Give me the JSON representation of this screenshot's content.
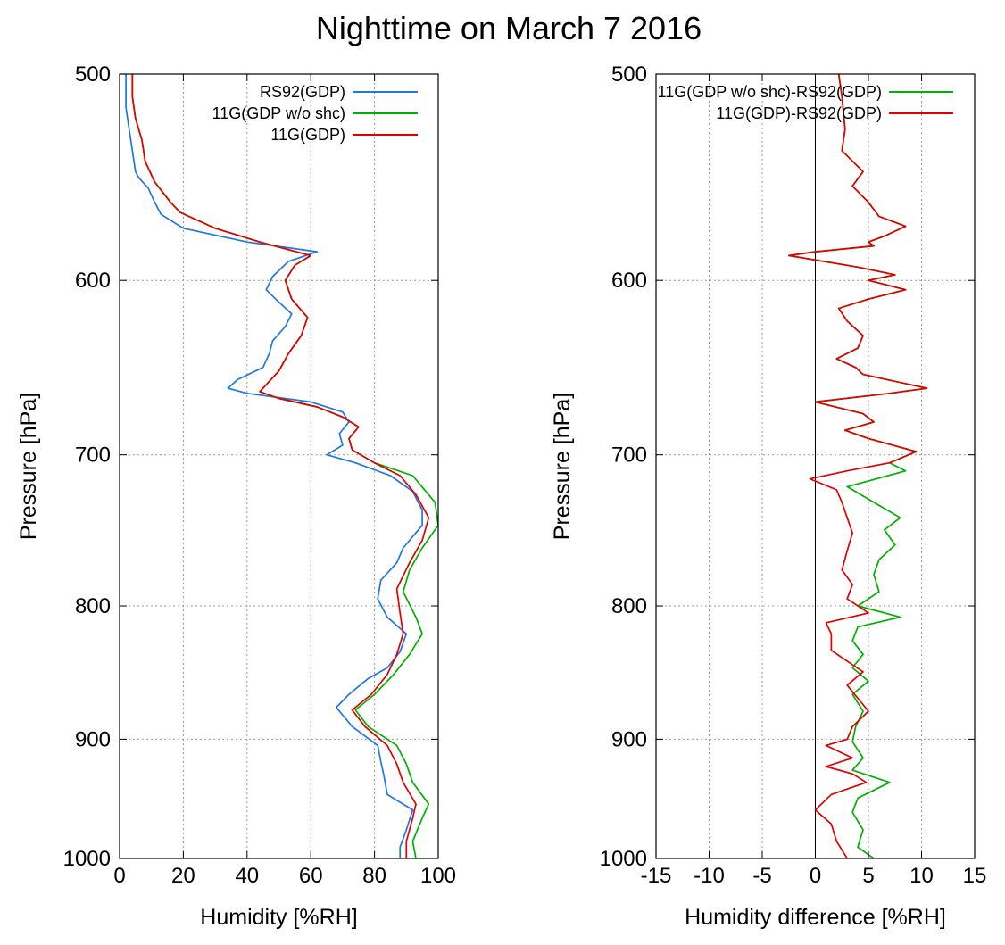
{
  "title": "Nighttime on March 7  2016",
  "chart_data": [
    {
      "type": "line",
      "orientation": "vertical-profile",
      "xlabel": "Humidity [%RH]",
      "ylabel": "Pressure [hPa]",
      "xlim": [
        0,
        100
      ],
      "ylim": [
        1000,
        500
      ],
      "yscale": "log",
      "xticks": [
        0,
        20,
        40,
        60,
        80,
        100
      ],
      "yticks": [
        500,
        600,
        700,
        800,
        900,
        1000
      ],
      "grid": true,
      "legend_position": "top-right",
      "series": [
        {
          "name": "RS92(GDP)",
          "color": "#1f77e0",
          "points": [
            [
              2,
              500
            ],
            [
              2,
              505
            ],
            [
              2,
              515
            ],
            [
              3,
              525
            ],
            [
              4,
              535
            ],
            [
              5,
              545
            ],
            [
              6,
              548
            ],
            [
              9,
              553
            ],
            [
              11,
              560
            ],
            [
              13,
              566
            ],
            [
              20,
              573
            ],
            [
              40,
              580
            ],
            [
              62,
              585
            ],
            [
              53,
              590
            ],
            [
              48,
              598
            ],
            [
              46,
              605
            ],
            [
              49,
              610
            ],
            [
              54,
              618
            ],
            [
              52,
              625
            ],
            [
              48,
              633
            ],
            [
              47,
              640
            ],
            [
              45,
              648
            ],
            [
              37,
              655
            ],
            [
              34,
              660
            ],
            [
              40,
              663
            ],
            [
              60,
              668
            ],
            [
              70,
              674
            ],
            [
              72,
              680
            ],
            [
              69,
              687
            ],
            [
              70,
              694
            ],
            [
              65,
              700
            ],
            [
              74,
              705
            ],
            [
              85,
              713
            ],
            [
              92,
              723
            ],
            [
              95,
              735
            ],
            [
              95,
              745
            ],
            [
              89,
              760
            ],
            [
              87,
              770
            ],
            [
              82,
              782
            ],
            [
              81,
              795
            ],
            [
              84,
              808
            ],
            [
              90,
              820
            ],
            [
              88,
              833
            ],
            [
              84,
              845
            ],
            [
              78,
              853
            ],
            [
              72,
              865
            ],
            [
              68,
              875
            ],
            [
              73,
              890
            ],
            [
              81,
              905
            ],
            [
              82,
              918
            ],
            [
              83,
              930
            ],
            [
              84,
              945
            ],
            [
              92,
              958
            ],
            [
              90,
              975
            ],
            [
              88,
              990
            ],
            [
              88,
              1000
            ]
          ]
        },
        {
          "name": "11G(GDP w/o shc)",
          "color": "#00b000",
          "points": [
            [
              4,
              500
            ],
            [
              4,
              510
            ],
            [
              5,
              520
            ],
            [
              7,
              530
            ],
            [
              8,
              540
            ],
            [
              11,
              550
            ],
            [
              16,
              560
            ],
            [
              19,
              565
            ],
            [
              30,
              573
            ],
            [
              44,
              580
            ],
            [
              60,
              587
            ],
            [
              55,
              592
            ],
            [
              52,
              600
            ],
            [
              54,
              610
            ],
            [
              59,
              620
            ],
            [
              57,
              630
            ],
            [
              53,
              640
            ],
            [
              50,
              650
            ],
            [
              46,
              658
            ],
            [
              44,
              662
            ],
            [
              50,
              666
            ],
            [
              62,
              671
            ],
            [
              70,
              677
            ],
            [
              75,
              683
            ],
            [
              72,
              690
            ],
            [
              73,
              697
            ],
            [
              80,
              705
            ],
            [
              92,
              713
            ],
            [
              99,
              730
            ],
            [
              100,
              745
            ],
            [
              95,
              760
            ],
            [
              91,
              775
            ],
            [
              89,
              790
            ],
            [
              93,
              808
            ],
            [
              95,
              820
            ],
            [
              91,
              835
            ],
            [
              86,
              850
            ],
            [
              80,
              865
            ],
            [
              74,
              877
            ],
            [
              78,
              890
            ],
            [
              87,
              905
            ],
            [
              90,
              920
            ],
            [
              92,
              935
            ],
            [
              97,
              953
            ],
            [
              95,
              965
            ],
            [
              92,
              985
            ],
            [
              93,
              1000
            ]
          ]
        },
        {
          "name": "11G(GDP)",
          "color": "#e00000",
          "points": [
            [
              4,
              500
            ],
            [
              4,
              510
            ],
            [
              5,
              520
            ],
            [
              7,
              530
            ],
            [
              8,
              540
            ],
            [
              11,
              550
            ],
            [
              16,
              560
            ],
            [
              19,
              565
            ],
            [
              30,
              573
            ],
            [
              44,
              580
            ],
            [
              60,
              587
            ],
            [
              55,
              592
            ],
            [
              52,
              600
            ],
            [
              54,
              610
            ],
            [
              59,
              620
            ],
            [
              57,
              630
            ],
            [
              53,
              640
            ],
            [
              50,
              650
            ],
            [
              46,
              658
            ],
            [
              44,
              662
            ],
            [
              50,
              666
            ],
            [
              62,
              671
            ],
            [
              70,
              677
            ],
            [
              75,
              683
            ],
            [
              72,
              690
            ],
            [
              73,
              697
            ],
            [
              80,
              705
            ],
            [
              88,
              713
            ],
            [
              93,
              725
            ],
            [
              97,
              740
            ],
            [
              95,
              755
            ],
            [
              91,
              770
            ],
            [
              87,
              788
            ],
            [
              88,
              805
            ],
            [
              89,
              820
            ],
            [
              87,
              835
            ],
            [
              84,
              850
            ],
            [
              79,
              865
            ],
            [
              73,
              877
            ],
            [
              77,
              890
            ],
            [
              84,
              905
            ],
            [
              87,
              920
            ],
            [
              89,
              935
            ],
            [
              93,
              953
            ],
            [
              92,
              965
            ],
            [
              90,
              985
            ],
            [
              90,
              1000
            ]
          ]
        }
      ]
    },
    {
      "type": "line",
      "orientation": "vertical-profile",
      "xlabel": "Humidity difference [%RH]",
      "ylabel": "Pressure [hPa]",
      "xlim": [
        -15,
        15
      ],
      "ylim": [
        1000,
        500
      ],
      "yscale": "log",
      "xticks": [
        -15,
        -10,
        -5,
        0,
        5,
        10,
        15
      ],
      "yticks": [
        500,
        600,
        700,
        800,
        900,
        1000
      ],
      "grid": true,
      "zero_line": true,
      "legend_position": "top-right",
      "series": [
        {
          "name": "11G(GDP w/o shc)-RS92(GDP)",
          "color": "#00b000",
          "points": [
            [
              2.2,
              500
            ],
            [
              2.5,
              510
            ],
            [
              2.8,
              525
            ],
            [
              2.5,
              535
            ],
            [
              4.5,
              545
            ],
            [
              3.5,
              552
            ],
            [
              5,
              560
            ],
            [
              6,
              567
            ],
            [
              8.5,
              572
            ],
            [
              6.5,
              577
            ],
            [
              5,
              580
            ],
            [
              5.5,
              582
            ],
            [
              0,
              585
            ],
            [
              -2.5,
              587
            ],
            [
              4,
              593
            ],
            [
              7.5,
              597
            ],
            [
              5,
              600
            ],
            [
              8.5,
              605
            ],
            [
              5,
              610
            ],
            [
              2.2,
              615
            ],
            [
              3,
              622
            ],
            [
              4.5,
              630
            ],
            [
              4,
              637
            ],
            [
              2,
              643
            ],
            [
              3.8,
              648
            ],
            [
              4.5,
              652
            ],
            [
              10.5,
              660
            ],
            [
              7,
              663
            ],
            [
              0,
              668
            ],
            [
              4.5,
              675
            ],
            [
              5.5,
              680
            ],
            [
              2.8,
              685
            ],
            [
              5,
              690
            ],
            [
              9.5,
              698
            ],
            [
              7,
              705
            ],
            [
              8.5,
              710
            ],
            [
              3,
              720
            ],
            [
              5.5,
              730
            ],
            [
              8,
              740
            ],
            [
              6.5,
              748
            ],
            [
              7.5,
              758
            ],
            [
              6,
              768
            ],
            [
              5.5,
              778
            ],
            [
              6,
              790
            ],
            [
              4,
              800
            ],
            [
              8,
              808
            ],
            [
              4,
              815
            ],
            [
              3.5,
              825
            ],
            [
              4.5,
              835
            ],
            [
              3.5,
              845
            ],
            [
              5,
              855
            ],
            [
              3.5,
              865
            ],
            [
              4.5,
              878
            ],
            [
              3.8,
              890
            ],
            [
              3.5,
              902
            ],
            [
              4.5,
              915
            ],
            [
              3.5,
              925
            ],
            [
              7,
              935
            ],
            [
              4,
              948
            ],
            [
              3.5,
              960
            ],
            [
              4.5,
              975
            ],
            [
              4,
              990
            ],
            [
              5.5,
              1000
            ]
          ]
        },
        {
          "name": "11G(GDP)-RS92(GDP)",
          "color": "#e00000",
          "points": [
            [
              2.2,
              500
            ],
            [
              2.5,
              510
            ],
            [
              2.8,
              525
            ],
            [
              2.5,
              535
            ],
            [
              4.5,
              545
            ],
            [
              3.5,
              552
            ],
            [
              5,
              560
            ],
            [
              6,
              567
            ],
            [
              8.5,
              572
            ],
            [
              6.5,
              577
            ],
            [
              5,
              580
            ],
            [
              5.5,
              582
            ],
            [
              0,
              585
            ],
            [
              -2.5,
              587
            ],
            [
              4,
              593
            ],
            [
              7.5,
              597
            ],
            [
              5,
              600
            ],
            [
              8.5,
              605
            ],
            [
              5,
              610
            ],
            [
              2.2,
              615
            ],
            [
              3,
              622
            ],
            [
              4.5,
              630
            ],
            [
              4,
              637
            ],
            [
              2,
              643
            ],
            [
              3.8,
              648
            ],
            [
              4.5,
              652
            ],
            [
              10.5,
              660
            ],
            [
              7,
              663
            ],
            [
              0,
              668
            ],
            [
              4.5,
              675
            ],
            [
              5.5,
              680
            ],
            [
              2.8,
              685
            ],
            [
              5,
              690
            ],
            [
              9.5,
              698
            ],
            [
              7,
              705
            ],
            [
              3,
              710
            ],
            [
              -0.5,
              715
            ],
            [
              2,
              722
            ],
            [
              2.5,
              730
            ],
            [
              3,
              740
            ],
            [
              3.5,
              750
            ],
            [
              3,
              762
            ],
            [
              2.5,
              775
            ],
            [
              3.5,
              785
            ],
            [
              3,
              795
            ],
            [
              5,
              805
            ],
            [
              1,
              812
            ],
            [
              1.5,
              820
            ],
            [
              1.5,
              832
            ],
            [
              3,
              840
            ],
            [
              4.5,
              848
            ],
            [
              3,
              858
            ],
            [
              4,
              868
            ],
            [
              5,
              878
            ],
            [
              3.5,
              890
            ],
            [
              3,
              900
            ],
            [
              1,
              905
            ],
            [
              3.5,
              915
            ],
            [
              1,
              922
            ],
            [
              3.5,
              928
            ],
            [
              4.8,
              935
            ],
            [
              1.5,
              945
            ],
            [
              0,
              958
            ],
            [
              1.5,
              970
            ],
            [
              2,
              985
            ],
            [
              3,
              1000
            ]
          ]
        }
      ]
    }
  ]
}
